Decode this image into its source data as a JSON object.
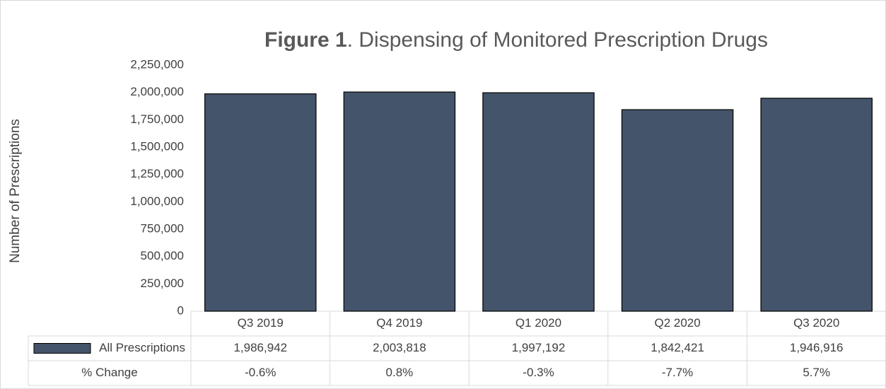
{
  "chart_data": {
    "type": "bar",
    "title": [
      "Figure 1",
      ". Dispensing of Monitored Prescription Drugs"
    ],
    "y_label": "Number of Prescriptions",
    "categories": [
      "Q3 2019",
      "Q4 2019",
      "Q1 2020",
      "Q2 2020",
      "Q3 2020"
    ],
    "series": [
      {
        "name": "All Prescriptions",
        "color": "#44546a",
        "values": [
          1986942,
          2003818,
          1997192,
          1842421,
          1946916
        ],
        "value_labels": [
          "1,986,942",
          "2,003,818",
          "1,997,192",
          "1,842,421",
          "1,946,916"
        ]
      }
    ],
    "change": {
      "name": "% Change",
      "values": [
        -0.6,
        0.8,
        -0.3,
        -7.7,
        5.7
      ],
      "value_labels": [
        "-0.6%",
        "0.8%",
        "-0.3%",
        "-7.7%",
        "5.7%"
      ]
    },
    "ylim": [
      0,
      2250000
    ],
    "yticks": [
      0,
      {
        "value": 250000,
        "label": "250,000"
      },
      {
        "value": 500000,
        "label": "500,000"
      },
      {
        "value": 750000,
        "label": "750,000"
      },
      {
        "value": 1000000,
        "label": "1,000,000"
      },
      {
        "value": 1250000,
        "label": "1,250,000"
      },
      {
        "value": 1500000,
        "label": "1,500,000"
      },
      {
        "value": 1750000,
        "label": "1,750,000"
      },
      {
        "value": 2000000,
        "label": "2,000,000"
      },
      {
        "value": 2250000,
        "label": "2,250,000"
      }
    ],
    "grid": false
  }
}
